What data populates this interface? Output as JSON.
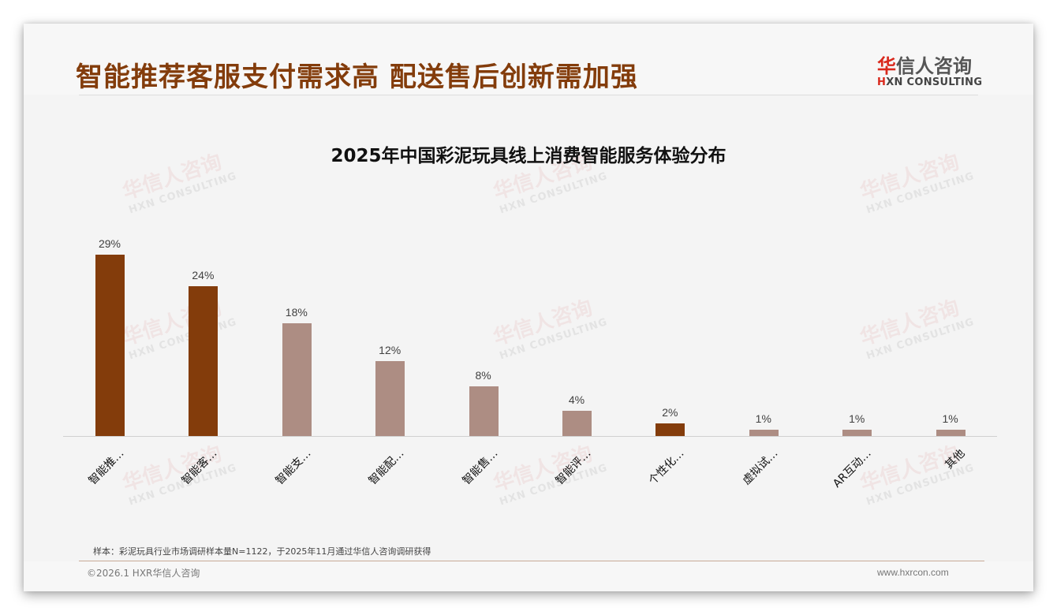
{
  "header": {
    "headline": "智能推荐客服支付需求高 配送售后创新需加强",
    "logo": {
      "cn_red": "华",
      "cn_rest": "信人咨询",
      "en_red": "H",
      "en_rest": "XN CONSULTING"
    }
  },
  "watermark": {
    "cn": "华信人咨询",
    "en": "HXN CONSULTING"
  },
  "colors": {
    "accent_dark": "#833c0b",
    "bar_muted": "#ad8d83",
    "headline": "#833c0b"
  },
  "chart_data": {
    "type": "bar",
    "title": "2025年中国彩泥玩具线上消费智能服务体验分布",
    "xlabel": "",
    "ylabel": "",
    "ylim": [
      0,
      30
    ],
    "grid": false,
    "legend": "none",
    "categories": [
      "智能推…",
      "智能客…",
      "智能支…",
      "智能配…",
      "智能售…",
      "智能评…",
      "个性化…",
      "虚拟试…",
      "AR互动…",
      "其他"
    ],
    "values": [
      29,
      24,
      18,
      12,
      8,
      4,
      2,
      1,
      1,
      1
    ],
    "value_labels": [
      "29%",
      "24%",
      "18%",
      "12%",
      "8%",
      "4%",
      "2%",
      "1%",
      "1%",
      "1%"
    ],
    "highlighted": [
      true,
      true,
      false,
      false,
      false,
      false,
      true,
      false,
      false,
      false
    ]
  },
  "footer": {
    "source": "样本：彩泥玩具行业市场调研样本量N=1122，于2025年11月通过华信人咨询调研获得",
    "copyright": "©2026.1 HXR华信人咨询",
    "website": "www.hxrcon.com"
  }
}
